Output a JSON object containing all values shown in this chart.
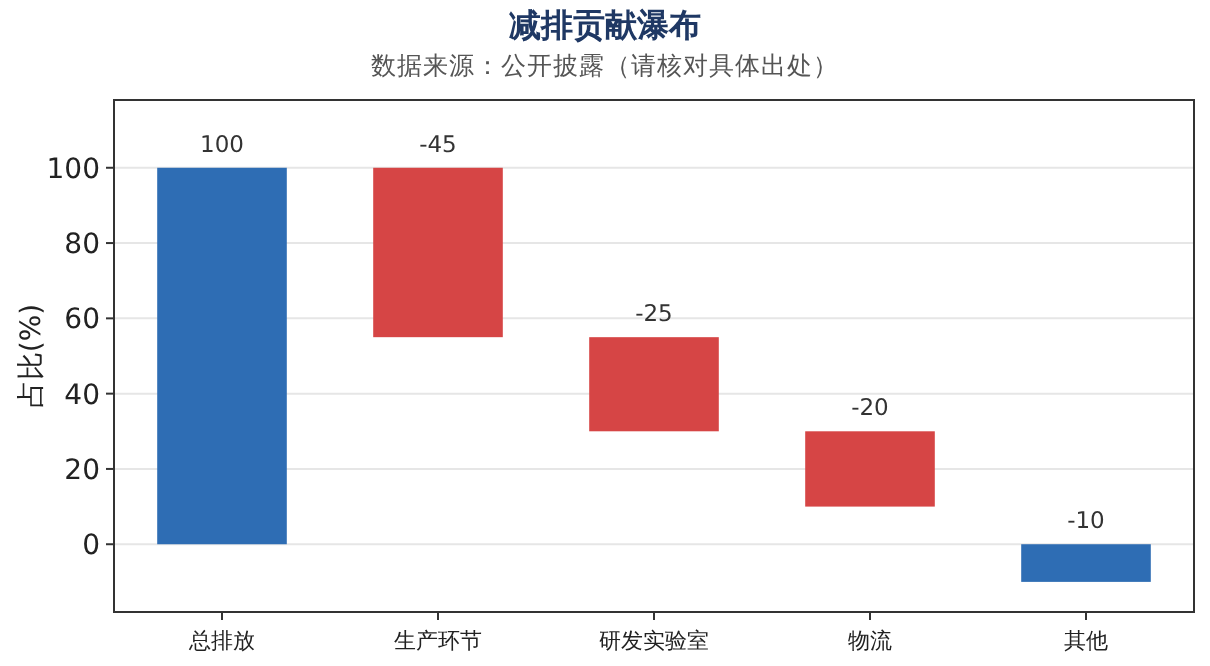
{
  "chart_data": {
    "type": "bar",
    "title": "减排贡献瀑布",
    "subtitle": "数据来源：公开披露（请核对具体出处）",
    "ylabel": "占比(%)",
    "categories": [
      "总排放",
      "生产环节",
      "研发实验室",
      "物流",
      "其他"
    ],
    "values": [
      100,
      -45,
      -25,
      -20,
      -10
    ],
    "base": [
      0,
      100,
      55,
      30,
      0
    ],
    "colors": [
      "#2e6db4",
      "#d64545",
      "#d64545",
      "#d64545",
      "#2e6db4"
    ],
    "ylim": [
      -18,
      118
    ],
    "yticks": [
      0,
      20,
      40,
      60,
      80,
      100
    ],
    "grid": "y",
    "data_labels": true
  }
}
